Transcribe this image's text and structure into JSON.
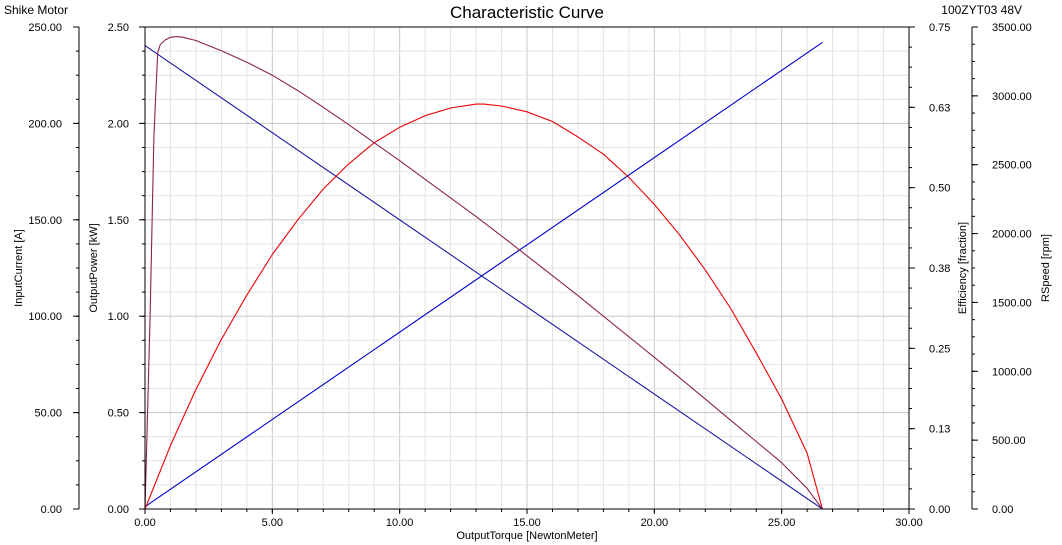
{
  "chart_data": {
    "type": "line",
    "title": "Characteristic Curve",
    "corner_left": "Shike Motor",
    "corner_right": "100ZYT03 48V",
    "xlabel": "OutputTorque [NewtonMeter]",
    "xlim": [
      0,
      30
    ],
    "x_ticks": [
      "0.00",
      "5.00",
      "10.00",
      "15.00",
      "20.00",
      "25.00",
      "30.00"
    ],
    "grid": true,
    "y_axes": [
      {
        "id": "current",
        "label": "InputCurrent [A]",
        "range": [
          0,
          250
        ],
        "ticks": [
          "0.00",
          "50.00",
          "100.00",
          "150.00",
          "200.00",
          "250.00"
        ]
      },
      {
        "id": "power",
        "label": "OutputPower [kW]",
        "range": [
          0,
          2.5
        ],
        "ticks": [
          "0.00",
          "0.50",
          "1.00",
          "1.50",
          "2.00",
          "2.50"
        ]
      },
      {
        "id": "efficiency",
        "label": "Efficiency [fraction]",
        "range": [
          0,
          0.75
        ],
        "ticks": [
          "0.00",
          "0.13",
          "0.25",
          "0.38",
          "0.50",
          "0.63",
          "0.75"
        ]
      },
      {
        "id": "speed",
        "label": "RSpeed [rpm]",
        "range": [
          0,
          3500
        ],
        "ticks": [
          "0.00",
          "500.00",
          "1000.00",
          "1500.00",
          "2000.00",
          "2500.00",
          "3000.00",
          "3500.00"
        ]
      }
    ],
    "series": [
      {
        "axis": "current",
        "color": "#0000cc",
        "x": [
          0,
          26.6
        ],
        "y": [
          1.2,
          242
        ]
      },
      {
        "axis": "speed",
        "color": "#1a1aa0",
        "x": [
          0,
          26.6
        ],
        "y": [
          3365,
          0
        ]
      },
      {
        "axis": "power",
        "color": "#ee0000",
        "x": [
          0,
          1,
          2,
          3,
          4,
          5,
          6,
          7,
          8,
          9,
          10,
          11,
          12,
          13,
          13.3,
          14,
          15,
          16,
          17,
          18,
          19,
          20,
          21,
          22,
          23,
          24,
          25,
          26,
          26.6
        ],
        "y": [
          0,
          0.33,
          0.62,
          0.88,
          1.11,
          1.32,
          1.5,
          1.66,
          1.79,
          1.9,
          1.98,
          2.04,
          2.08,
          2.1,
          2.1,
          2.09,
          2.06,
          2.01,
          1.93,
          1.84,
          1.72,
          1.58,
          1.42,
          1.24,
          1.04,
          0.81,
          0.57,
          0.29,
          0
        ]
      },
      {
        "axis": "efficiency",
        "color": "#8b2252",
        "x": [
          0,
          0.2,
          0.35,
          0.5,
          0.6,
          0.8,
          1.0,
          1.25,
          1.5,
          2,
          3,
          4,
          5,
          6,
          7,
          8,
          9,
          10,
          11,
          12,
          13,
          14,
          15,
          16,
          17,
          18,
          19,
          20,
          21,
          22,
          23,
          24,
          25,
          26,
          26.6
        ],
        "y": [
          0,
          0.3,
          0.58,
          0.71,
          0.723,
          0.73,
          0.734,
          0.735,
          0.734,
          0.729,
          0.713,
          0.695,
          0.675,
          0.651,
          0.625,
          0.598,
          0.57,
          0.542,
          0.513,
          0.484,
          0.455,
          0.425,
          0.394,
          0.363,
          0.332,
          0.3,
          0.268,
          0.236,
          0.204,
          0.171,
          0.138,
          0.105,
          0.072,
          0.032,
          0
        ]
      }
    ]
  }
}
